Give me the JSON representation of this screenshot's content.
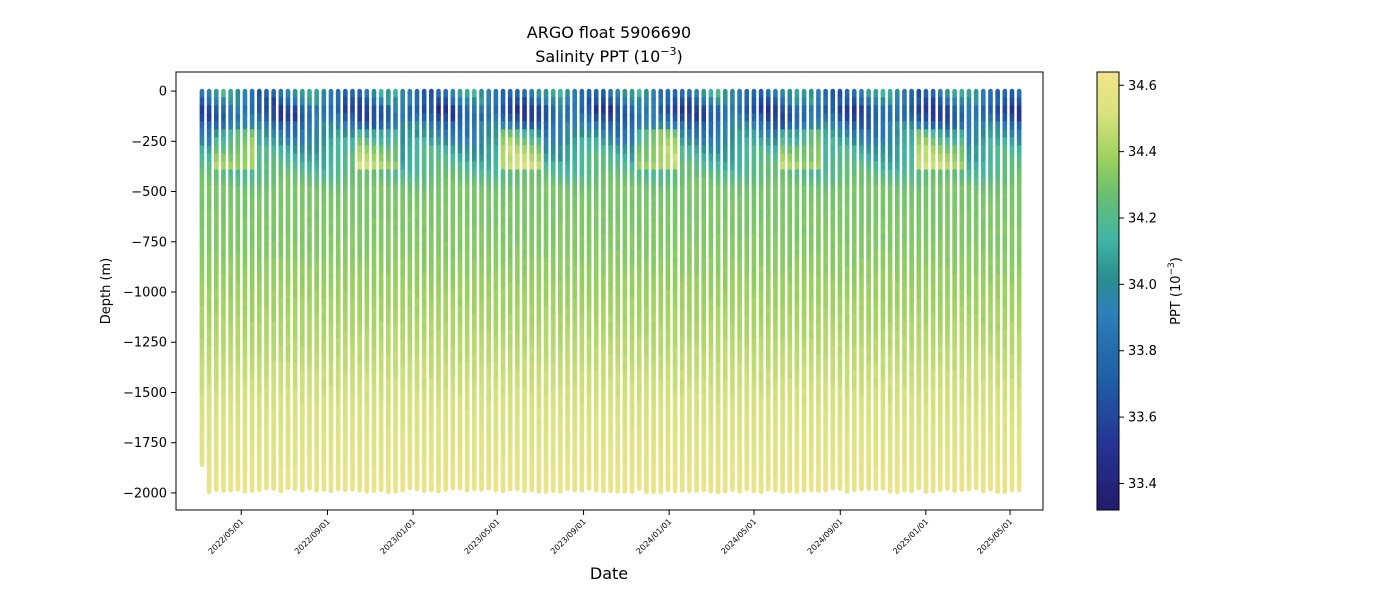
{
  "chart_data": {
    "type": "scatter",
    "title_line1": "ARGO float 5906690",
    "title_line2_prefix": "Salinity PPT (10",
    "title_line2_exp": "−3",
    "title_line2_suffix": ")",
    "xlabel": "Date",
    "ylabel": "Depth (m)",
    "xlim": [
      "2022-01-28",
      "2025-06-17"
    ],
    "ylim": [
      -2085,
      95
    ],
    "x_ticks": [
      "2022/05/01",
      "2022/09/01",
      "2023/01/01",
      "2023/05/01",
      "2023/09/01",
      "2024/01/01",
      "2024/05/01",
      "2024/09/01",
      "2025/01/01",
      "2025/05/01"
    ],
    "y_ticks": [
      0,
      -250,
      -500,
      -750,
      -1000,
      -1250,
      -1500,
      -1750,
      -2000
    ],
    "y_tick_labels": [
      "0",
      "−250",
      "−500",
      "−750",
      "−1000",
      "−1250",
      "−1500",
      "−1750",
      "−2000"
    ],
    "profiles": {
      "first_date": "2022-03-06",
      "last_date": "2025-05-14",
      "count": 115,
      "top_depth": 0,
      "typical_bottom_depth": -1985,
      "first_profile_bottom_depth": -1860
    },
    "salinity_structure": [
      {
        "depth": 0,
        "ppt": 33.95
      },
      {
        "depth": -100,
        "ppt": 33.75
      },
      {
        "depth": -150,
        "ppt": 33.8
      },
      {
        "depth": -300,
        "ppt": 34.1
      },
      {
        "depth": -500,
        "ppt": 34.3
      },
      {
        "depth": -800,
        "ppt": 34.33
      },
      {
        "depth": -1200,
        "ppt": 34.42
      },
      {
        "depth": -1600,
        "ppt": 34.52
      },
      {
        "depth": -2000,
        "ppt": 34.6
      }
    ],
    "colorbar": {
      "colormap": "YlGnBu_r",
      "label_prefix": "PPT (10",
      "label_exp": "−3",
      "label_suffix": ")",
      "min": 33.32,
      "max": 34.64,
      "ticks": [
        33.4,
        33.6,
        33.8,
        34.0,
        34.2,
        34.4,
        34.6
      ],
      "tick_labels": [
        "33.4",
        "33.6",
        "33.8",
        "34.0",
        "34.2",
        "34.4",
        "34.6"
      ]
    },
    "grid": false
  }
}
